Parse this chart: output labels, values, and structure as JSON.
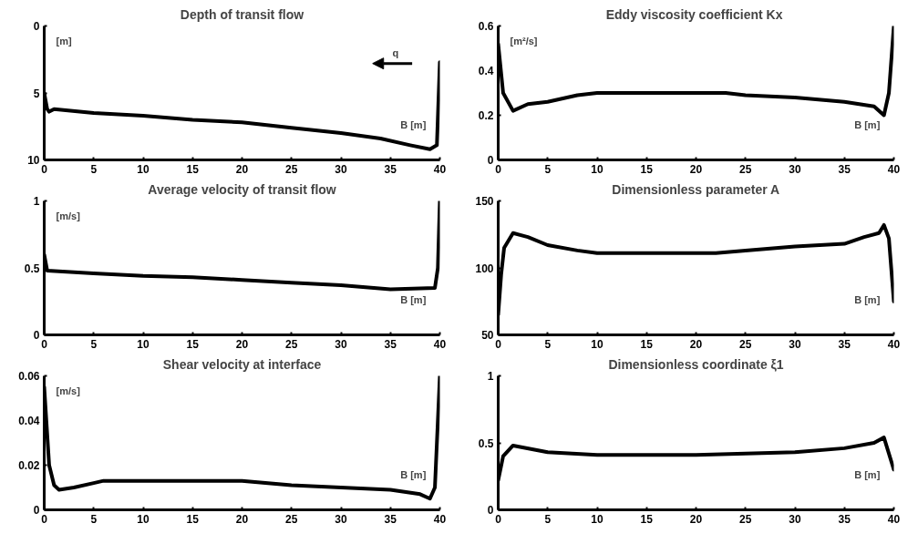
{
  "chart_data": [
    {
      "type": "line",
      "title": "Depth of transit flow",
      "ylabel": "[m]",
      "xlabel": "B [m]",
      "annotations": [
        "q"
      ],
      "xlim": [
        0,
        40
      ],
      "xticks": [
        0,
        5,
        10,
        15,
        20,
        25,
        30,
        35,
        40
      ],
      "ylim": [
        10,
        0
      ],
      "yticks": [
        0,
        5,
        10
      ],
      "x": [
        0,
        0.3,
        0.5,
        1,
        5,
        10,
        15,
        20,
        25,
        30,
        34,
        37,
        39,
        39.7,
        40
      ],
      "series": [
        {
          "color": "#000000",
          "values": [
            5.0,
            6.2,
            6.4,
            6.2,
            6.5,
            6.7,
            7.0,
            7.2,
            7.6,
            8.0,
            8.4,
            8.9,
            9.2,
            8.9,
            2.7
          ]
        }
      ]
    },
    {
      "type": "line",
      "title": "Eddy viscosity coefficient  Kx",
      "ylabel": "[m²/s]",
      "xlabel": "B [m]",
      "xlim": [
        0,
        40
      ],
      "xticks": [
        0,
        5,
        10,
        15,
        20,
        25,
        30,
        35,
        40
      ],
      "ylim": [
        0,
        0.6
      ],
      "yticks": [
        0,
        0.2,
        0.4,
        0.6
      ],
      "x": [
        0,
        0.5,
        1.5,
        3,
        5,
        8,
        10,
        15,
        20,
        23,
        25,
        30,
        35,
        38,
        39,
        39.5,
        40
      ],
      "series": [
        {
          "color": "#000000",
          "values": [
            0.52,
            0.3,
            0.22,
            0.25,
            0.26,
            0.29,
            0.3,
            0.3,
            0.3,
            0.3,
            0.29,
            0.28,
            0.26,
            0.24,
            0.2,
            0.3,
            0.6
          ]
        }
      ]
    },
    {
      "type": "line",
      "title": "Average velocity of transit flow",
      "ylabel": "[m/s]",
      "xlabel": "B [m]",
      "xlim": [
        0,
        40
      ],
      "xticks": [
        0,
        5,
        10,
        15,
        20,
        25,
        30,
        35,
        40
      ],
      "ylim": [
        0,
        1
      ],
      "yticks": [
        0,
        0.5,
        1
      ],
      "x": [
        0,
        0.3,
        5,
        10,
        15,
        20,
        25,
        30,
        35,
        39.5,
        39.8,
        40
      ],
      "series": [
        {
          "color": "#000000",
          "values": [
            0.6,
            0.48,
            0.46,
            0.44,
            0.43,
            0.41,
            0.39,
            0.37,
            0.34,
            0.35,
            0.5,
            1.0
          ]
        }
      ]
    },
    {
      "type": "line",
      "title": "Dimensionless parameter A",
      "xlabel": "B [m]",
      "xlim": [
        0,
        40
      ],
      "xticks": [
        0,
        5,
        10,
        15,
        20,
        25,
        30,
        35,
        40
      ],
      "ylim": [
        50,
        150
      ],
      "yticks": [
        50,
        100,
        150
      ],
      "x": [
        0,
        0.3,
        0.6,
        1.5,
        3,
        5,
        8,
        10,
        15,
        20,
        22,
        25,
        30,
        35,
        37,
        38.5,
        39,
        39.5,
        40
      ],
      "series": [
        {
          "color": "#000000",
          "values": [
            65,
            95,
            115,
            126,
            123,
            117,
            113,
            111,
            111,
            111,
            111,
            113,
            116,
            118,
            123,
            126,
            132,
            122,
            75
          ]
        }
      ]
    },
    {
      "type": "line",
      "title": "Shear velocity at interface",
      "ylabel": "[m/s]",
      "xlabel": "B [m]",
      "xlim": [
        0,
        40
      ],
      "xticks": [
        0,
        5,
        10,
        15,
        20,
        25,
        30,
        35,
        40
      ],
      "ylim": [
        0,
        0.06
      ],
      "yticks": [
        0,
        0.02,
        0.04,
        0.06
      ],
      "x": [
        0,
        0.5,
        1,
        1.5,
        3,
        5,
        6,
        10,
        20,
        25,
        30,
        35,
        38,
        39,
        39.5,
        40
      ],
      "series": [
        {
          "color": "#000000",
          "values": [
            0.055,
            0.02,
            0.011,
            0.009,
            0.01,
            0.012,
            0.013,
            0.013,
            0.013,
            0.011,
            0.01,
            0.009,
            0.007,
            0.005,
            0.01,
            0.06
          ]
        }
      ]
    },
    {
      "type": "line",
      "title": "Dimensionless coordinate ξ1",
      "xlabel": "B [m]",
      "xlim": [
        0,
        40
      ],
      "xticks": [
        0,
        5,
        10,
        15,
        20,
        25,
        30,
        35,
        40
      ],
      "ylim": [
        0,
        1
      ],
      "yticks": [
        0,
        0.5,
        1
      ],
      "x": [
        0,
        0.5,
        1.5,
        5,
        10,
        20,
        25,
        30,
        35,
        38,
        39,
        40
      ],
      "series": [
        {
          "color": "#000000",
          "values": [
            0.22,
            0.4,
            0.48,
            0.43,
            0.41,
            0.41,
            0.42,
            0.43,
            0.46,
            0.5,
            0.54,
            0.3
          ]
        }
      ]
    }
  ]
}
